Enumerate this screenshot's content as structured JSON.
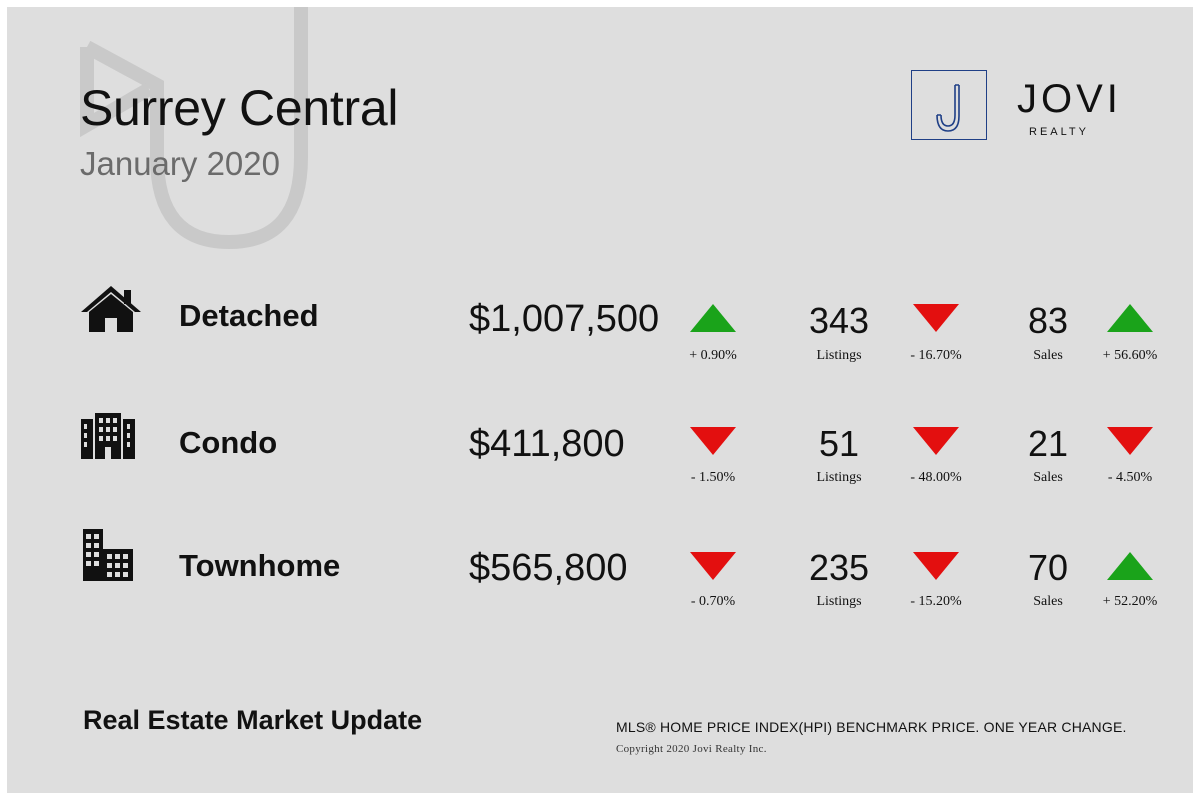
{
  "header": {
    "title": "Surrey Central",
    "subtitle": "January 2020"
  },
  "logo": {
    "word": "JOVI",
    "sub": "REALTY",
    "icon": "j-monogram-icon",
    "brand_color": "#1f3f86"
  },
  "rows": [
    {
      "label": "Detached",
      "icon": "house-icon",
      "price": "$1,007,500",
      "price_change": {
        "text": "+ 0.90%",
        "direction": "up"
      },
      "listings": "343",
      "listings_label": "Listings",
      "listings_change": {
        "text": "- 16.70%",
        "direction": "down"
      },
      "sales": "83",
      "sales_label": "Sales",
      "sales_change": {
        "text": "+ 56.60%",
        "direction": "up"
      }
    },
    {
      "label": "Condo",
      "icon": "condo-building-icon",
      "price": "$411,800",
      "price_change": {
        "text": "- 1.50%",
        "direction": "down"
      },
      "listings": "51",
      "listings_label": "Listings",
      "listings_change": {
        "text": "- 48.00%",
        "direction": "down"
      },
      "sales": "21",
      "sales_label": "Sales",
      "sales_change": {
        "text": "- 4.50%",
        "direction": "down"
      }
    },
    {
      "label": "Townhome",
      "icon": "townhome-building-icon",
      "price": "$565,800",
      "price_change": {
        "text": "- 0.70%",
        "direction": "down"
      },
      "listings": "235",
      "listings_label": "Listings",
      "listings_change": {
        "text": "- 15.20%",
        "direction": "down"
      },
      "sales": "70",
      "sales_label": "Sales",
      "sales_change": {
        "text": "+ 52.20%",
        "direction": "up"
      }
    }
  ],
  "colors": {
    "up": "#1aa31a",
    "down": "#e30f0f",
    "background": "#dedede"
  },
  "footer": {
    "title": "Real Estate Market Update",
    "note": "MLS® HOME PRICE INDEX(HPI) BENCHMARK PRICE. ONE YEAR CHANGE.",
    "copyright": "Copyright 2020 Jovi Realty Inc."
  }
}
